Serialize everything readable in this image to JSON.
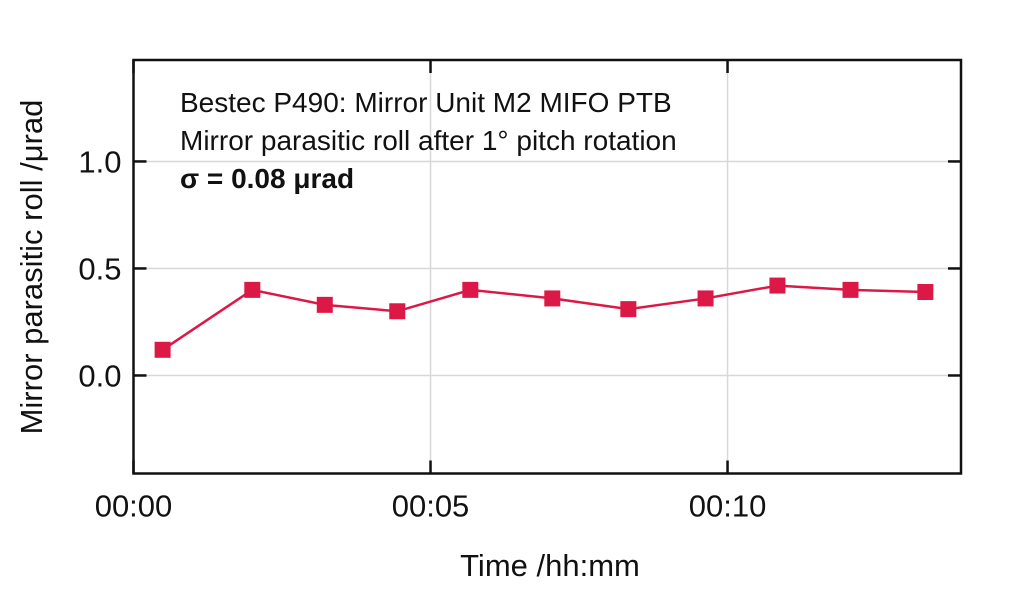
{
  "chart_data": {
    "type": "line",
    "title_lines": [
      "Bestec P490: Mirror Unit M2 MIFO PTB",
      "Mirror parasitic roll after 1° pitch rotation",
      "σ = 0.08 μrad"
    ],
    "xlabel": "Time /hh:mm",
    "ylabel": "Mirror parasitic roll /μrad",
    "x_ticks": [
      {
        "minutes": 0,
        "label": "00:00"
      },
      {
        "minutes": 5,
        "label": "00:05"
      },
      {
        "minutes": 10,
        "label": "00:10"
      }
    ],
    "y_ticks": [
      {
        "value": 0.0,
        "label": "0.0"
      },
      {
        "value": 0.5,
        "label": "0.5"
      },
      {
        "value": 1.0,
        "label": "1.0"
      }
    ],
    "xlim_minutes": [
      0,
      13.93
    ],
    "ylim": [
      -0.458,
      1.474
    ],
    "grid": true,
    "legend": "none",
    "series": [
      {
        "name": "Mirror parasitic roll after 1° pitch rotation",
        "marker": "square",
        "x_minutes": [
          0.49,
          2.0,
          3.22,
          4.44,
          5.67,
          7.05,
          8.33,
          9.63,
          10.84,
          12.07,
          13.33
        ],
        "values": [
          0.12,
          0.4,
          0.33,
          0.3,
          0.4,
          0.36,
          0.31,
          0.36,
          0.42,
          0.4,
          0.39
        ]
      }
    ],
    "sigma_stat": "0.08"
  },
  "colors": {
    "series": "#dc1946",
    "grid": "#d8d8d8",
    "axis": "#111111",
    "background": "#ffffff"
  }
}
